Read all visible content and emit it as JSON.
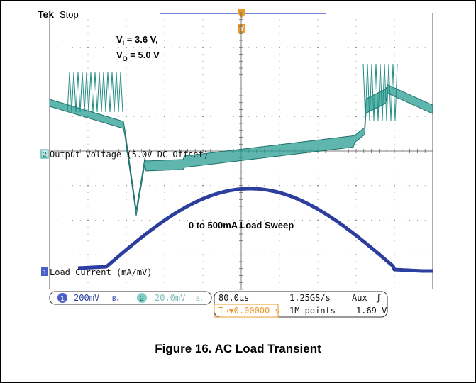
{
  "header": {
    "brand": "Tek",
    "status": "Stop"
  },
  "conditions": {
    "vi_main": "V",
    "vi_sub": "I",
    "vi_value": " = 3.6 V,",
    "vo_main": "V",
    "vo_sub": "O",
    "vo_value": " = 5.0 V"
  },
  "channels": {
    "ch2": {
      "marker": "2",
      "label": "Output Voltage (5.0V DC Offset)",
      "color": "#2a9d93"
    },
    "ch1": {
      "marker": "1",
      "label": "Load Current (mA/mV)",
      "color": "#2c3e9e"
    }
  },
  "annotation": "0 to 500mA Load Sweep",
  "trigger_marker": "T",
  "status_bar": {
    "ch1_num": "1",
    "ch1_scale": "200mV",
    "ch1_bw": "Bᵥ",
    "ch2_num": "2",
    "ch2_scale": "20.0mV",
    "ch2_bw": "Bᵥ",
    "timebase": "80.0µs",
    "sample_rate": "1.25GS/s",
    "trigger_source": "Aux",
    "trigger_slope": "ʃ",
    "trigger_pos": "T→▼0.00000 s",
    "record_length": "1M points",
    "trigger_level": "1.69 V"
  },
  "caption": "Figure 16. AC Load Transient",
  "colors": {
    "grid": "#8a8a8a",
    "ch1": "#2c3e9e",
    "ch2": "#2a9d93",
    "trigger": "#e89a2c",
    "bar": "#4a60c8"
  },
  "chart_data": {
    "type": "line",
    "title": "",
    "time_per_div": "80.0µs",
    "series": [
      {
        "name": "Output Voltage (5.0V DC Offset)",
        "scale_per_div": "20.0mV"
      },
      {
        "name": "Load Current (mA/mV)",
        "scale_per_div": "200mV",
        "range_mA": [
          0,
          500
        ]
      }
    ]
  }
}
